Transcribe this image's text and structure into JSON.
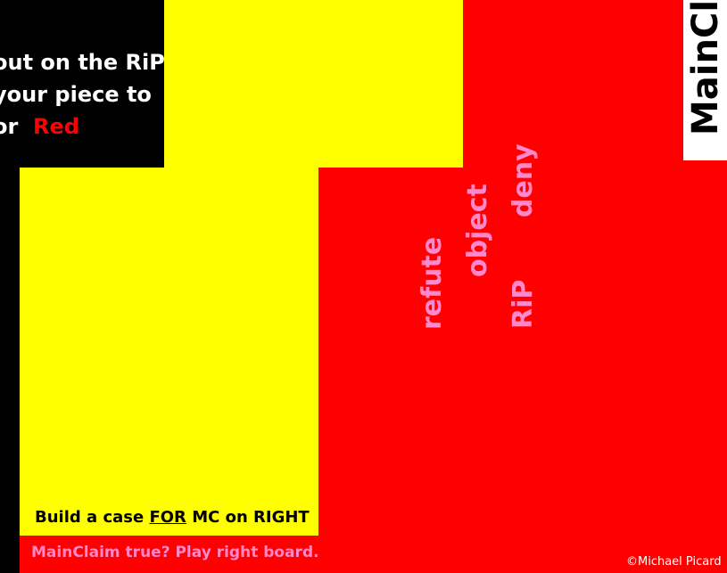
{
  "instructions": {
    "line1": "out on the RiP",
    "line2": "your piece to",
    "line3_prefix": "or",
    "line3_color": "Red"
  },
  "main_claim_label": "MainCla",
  "moves": {
    "refute": "refute",
    "object": "object",
    "rip": "RiP",
    "deny": "deny"
  },
  "build_case": {
    "prefix": "Build a case ",
    "for": "FOR",
    "suffix": " MC on RIGHT"
  },
  "play_prompt": "MainClaim true?  Play right board.",
  "copyright": "©Michael Picard",
  "colors": {
    "yellow": "#ffff00",
    "red": "#ff0000",
    "pink": "#ff88cc",
    "black": "#000000"
  }
}
